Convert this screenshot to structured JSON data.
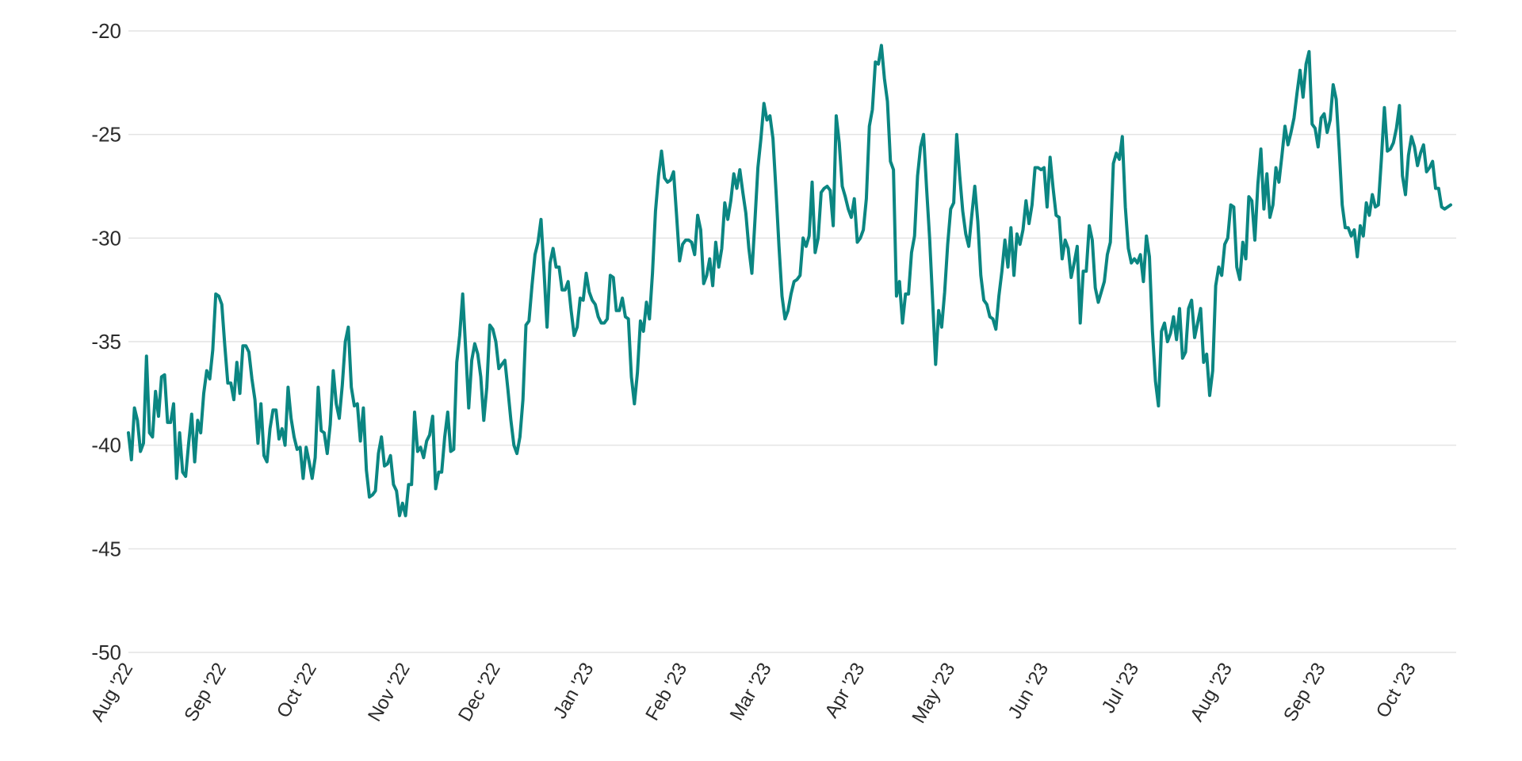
{
  "chart_data": {
    "type": "line",
    "title": "",
    "xlabel": "",
    "ylabel": "",
    "ylim": [
      -50,
      -20
    ],
    "yticks": [
      -20,
      -25,
      -30,
      -35,
      -40,
      -45,
      -50
    ],
    "grid": true,
    "legend": "none",
    "x_unit": "days since Aug 1 2022",
    "x_range": [
      0,
      439
    ],
    "xticks": [
      {
        "label": "Aug '22",
        "day": 0
      },
      {
        "label": "Sep '22",
        "day": 31
      },
      {
        "label": "Oct '22",
        "day": 61
      },
      {
        "label": "Nov '22",
        "day": 92
      },
      {
        "label": "Dec '22",
        "day": 122
      },
      {
        "label": "Jan '23",
        "day": 153
      },
      {
        "label": "Feb '23",
        "day": 184
      },
      {
        "label": "Mar '23",
        "day": 212
      },
      {
        "label": "Apr '23",
        "day": 243
      },
      {
        "label": "May '23",
        "day": 273
      },
      {
        "label": "Jun '23",
        "day": 304
      },
      {
        "label": "Jul '23",
        "day": 334
      },
      {
        "label": "Aug '23",
        "day": 365
      },
      {
        "label": "Sep '23",
        "day": 396
      },
      {
        "label": "Oct '23",
        "day": 426
      }
    ],
    "series": [
      {
        "name": "series",
        "color": "#0b8682",
        "values": [
          -39.4,
          -40.7,
          -38.2,
          -38.8,
          -40.3,
          -39.9,
          -35.7,
          -39.4,
          -39.6,
          -37.4,
          -38.6,
          -36.7,
          -36.6,
          -38.9,
          -38.9,
          -38.0,
          -41.6,
          -39.4,
          -41.3,
          -41.5,
          -39.9,
          -38.5,
          -40.8,
          -38.8,
          -39.4,
          -37.5,
          -36.4,
          -36.8,
          -35.4,
          -32.7,
          -32.8,
          -33.2,
          -35.2,
          -37.0,
          -37.0,
          -37.8,
          -36.0,
          -37.5,
          -35.2,
          -35.2,
          -35.5,
          -36.8,
          -37.8,
          -39.9,
          -38.0,
          -40.5,
          -40.8,
          -39.2,
          -38.3,
          -38.3,
          -39.7,
          -39.2,
          -40.0,
          -37.2,
          -38.7,
          -39.6,
          -40.2,
          -40.1,
          -41.6,
          -40.1,
          -40.8,
          -41.6,
          -40.6,
          -37.2,
          -39.3,
          -39.4,
          -40.4,
          -39.0,
          -36.4,
          -38.0,
          -38.7,
          -37.1,
          -35.0,
          -34.3,
          -37.2,
          -38.1,
          -38.0,
          -39.8,
          -38.2,
          -41.2,
          -42.5,
          -42.4,
          -42.2,
          -40.4,
          -39.6,
          -41.0,
          -40.9,
          -40.5,
          -41.9,
          -42.2,
          -43.4,
          -42.8,
          -43.4,
          -41.9,
          -41.9,
          -38.4,
          -40.3,
          -40.1,
          -40.6,
          -39.8,
          -39.5,
          -38.6,
          -42.1,
          -41.3,
          -41.3,
          -39.6,
          -38.4,
          -40.3,
          -40.2,
          -36.0,
          -34.7,
          -32.7,
          -35.4,
          -38.2,
          -35.9,
          -35.1,
          -35.6,
          -36.7,
          -38.8,
          -37.2,
          -34.2,
          -34.4,
          -35.0,
          -36.3,
          -36.1,
          -35.9,
          -37.3,
          -38.8,
          -40.0,
          -40.4,
          -39.6,
          -37.8,
          -34.2,
          -34.0,
          -32.3,
          -30.8,
          -30.2,
          -29.1,
          -31.6,
          -34.3,
          -31.2,
          -30.5,
          -31.4,
          -31.4,
          -32.5,
          -32.5,
          -32.1,
          -33.5,
          -34.7,
          -34.3,
          -32.9,
          -33.0,
          -31.7,
          -32.6,
          -33.0,
          -33.2,
          -33.8,
          -34.1,
          -34.1,
          -33.9,
          -31.8,
          -31.9,
          -33.5,
          -33.5,
          -32.9,
          -33.8,
          -33.9,
          -36.7,
          -38.0,
          -36.5,
          -34.0,
          -34.5,
          -33.1,
          -33.9,
          -31.7,
          -28.7,
          -27.0,
          -25.8,
          -27.1,
          -27.3,
          -27.2,
          -26.8,
          -28.9,
          -31.1,
          -30.3,
          -30.1,
          -30.1,
          -30.2,
          -30.8,
          -28.9,
          -29.6,
          -32.2,
          -31.8,
          -31.0,
          -32.3,
          -30.2,
          -31.4,
          -30.5,
          -28.3,
          -29.1,
          -28.2,
          -26.9,
          -27.6,
          -26.7,
          -27.8,
          -28.8,
          -30.5,
          -31.7,
          -29.2,
          -26.6,
          -25.2,
          -23.5,
          -24.3,
          -24.1,
          -25.2,
          -27.7,
          -30.4,
          -32.8,
          -33.9,
          -33.5,
          -32.7,
          -32.1,
          -32.0,
          -31.8,
          -30.0,
          -30.4,
          -29.9,
          -27.3,
          -30.7,
          -30.0,
          -27.8,
          -27.6,
          -27.5,
          -27.7,
          -29.4,
          -24.1,
          -25.4,
          -27.5,
          -28.0,
          -28.6,
          -29.0,
          -28.1,
          -30.2,
          -30.0,
          -29.6,
          -28.1,
          -24.6,
          -23.8,
          -21.5,
          -21.6,
          -20.7,
          -22.3,
          -23.4,
          -26.3,
          -26.7,
          -32.8,
          -32.1,
          -34.1,
          -32.7,
          -32.7,
          -30.7,
          -29.9,
          -27.0,
          -25.6,
          -25.0,
          -27.6,
          -30.0,
          -33.0,
          -36.1,
          -33.5,
          -34.3,
          -32.6,
          -30.3,
          -28.6,
          -28.3,
          -25.0,
          -27.0,
          -28.7,
          -29.8,
          -30.4,
          -28.9,
          -27.5,
          -29.2,
          -31.8,
          -33.0,
          -33.2,
          -33.8,
          -33.9,
          -34.4,
          -32.8,
          -31.6,
          -30.1,
          -31.4,
          -29.5,
          -31.8,
          -29.8,
          -30.3,
          -29.6,
          -28.2,
          -29.3,
          -28.4,
          -26.6,
          -26.6,
          -26.7,
          -26.6,
          -28.5,
          -26.1,
          -27.6,
          -28.9,
          -29.0,
          -31.0,
          -30.1,
          -30.5,
          -31.9,
          -31.2,
          -30.4,
          -34.1,
          -31.6,
          -31.6,
          -29.4,
          -30.1,
          -32.4,
          -33.1,
          -32.6,
          -32.1,
          -30.8,
          -30.2,
          -26.4,
          -25.9,
          -26.2,
          -25.1,
          -28.5,
          -30.5,
          -31.2,
          -31.0,
          -31.2,
          -30.8,
          -32.1,
          -29.9,
          -30.9,
          -34.5,
          -36.9,
          -38.1,
          -34.5,
          -34.1,
          -35.0,
          -34.6,
          -33.8,
          -34.9,
          -33.4,
          -35.8,
          -35.5,
          -33.4,
          -33.0,
          -34.8,
          -34.1,
          -33.4,
          -36.0,
          -35.6,
          -37.6,
          -36.4,
          -32.3,
          -31.4,
          -31.8,
          -30.3,
          -30.0,
          -28.4,
          -28.5,
          -31.4,
          -32.0,
          -30.2,
          -31.0,
          -28.0,
          -28.2,
          -30.1,
          -27.4,
          -25.7,
          -28.6,
          -26.9,
          -29.0,
          -28.4,
          -26.6,
          -27.3,
          -26.0,
          -24.6,
          -25.5,
          -24.9,
          -24.2,
          -23.0,
          -21.9,
          -23.2,
          -21.6,
          -21.0,
          -24.5,
          -24.7,
          -25.6,
          -24.2,
          -24.0,
          -24.9,
          -24.3,
          -22.6,
          -23.3,
          -25.7,
          -28.4,
          -29.5,
          -29.5,
          -29.9,
          -29.6,
          -30.9,
          -29.4,
          -29.9,
          -28.3,
          -28.9,
          -27.9,
          -28.5,
          -28.4,
          -26.2,
          -23.7,
          -25.8,
          -25.7,
          -25.4,
          -24.7,
          -23.6,
          -27.0,
          -27.9,
          -26.0,
          -25.1,
          -25.6,
          -26.5,
          -25.9,
          -25.5,
          -26.8,
          -26.6,
          -26.3,
          -27.6,
          -27.6,
          -28.5,
          -28.6,
          -28.5,
          -28.4
        ]
      }
    ]
  }
}
